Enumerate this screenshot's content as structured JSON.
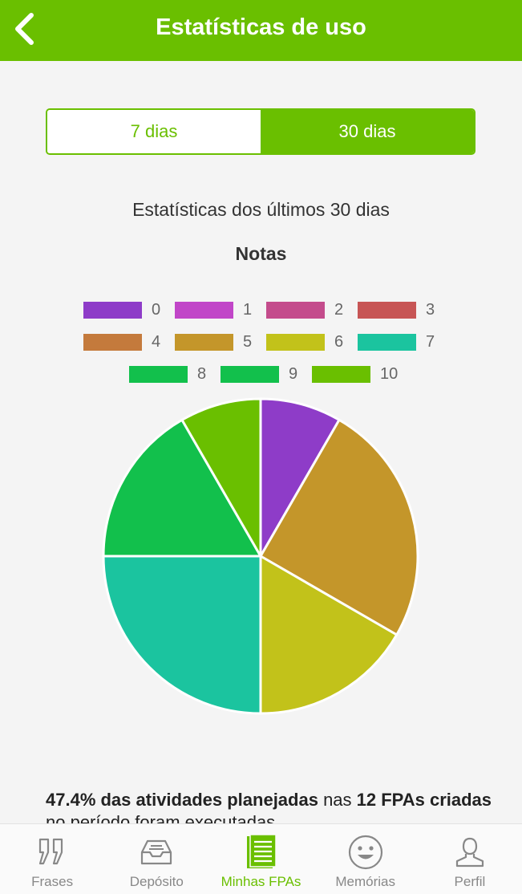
{
  "header": {
    "title": "Estatísticas de uso"
  },
  "segment": {
    "option_7": "7 dias",
    "option_30": "30 dias",
    "selected": "30 dias"
  },
  "subtitle": "Estatísticas dos últimos 30 dias",
  "chart_data": {
    "type": "pie",
    "title": "Notas",
    "legend": [
      {
        "label": "0",
        "color": "#8e3cc8"
      },
      {
        "label": "1",
        "color": "#c146c8"
      },
      {
        "label": "2",
        "color": "#c44c8c"
      },
      {
        "label": "3",
        "color": "#c75555"
      },
      {
        "label": "4",
        "color": "#c47a3c"
      },
      {
        "label": "5",
        "color": "#c4962a"
      },
      {
        "label": "6",
        "color": "#c2c21a"
      },
      {
        "label": "7",
        "color": "#1bc49f"
      },
      {
        "label": "8",
        "color": "#12c04c"
      },
      {
        "label": "9",
        "color": "#12c04c"
      },
      {
        "label": "10",
        "color": "#6abf00"
      }
    ],
    "slices": [
      {
        "label": "0",
        "value": 1,
        "color": "#8e3cc8"
      },
      {
        "label": "5",
        "value": 3,
        "color": "#c4962a"
      },
      {
        "label": "6",
        "value": 2,
        "color": "#c2c21a"
      },
      {
        "label": "7",
        "value": 3,
        "color": "#1bc49f"
      },
      {
        "label": "8",
        "value": 2,
        "color": "#12c04c"
      },
      {
        "label": "10",
        "value": 1,
        "color": "#6abf00"
      }
    ]
  },
  "summary": {
    "percent": "47.4% das atividades planejadas",
    "middle": " nas ",
    "count": "12 FPAs criadas",
    "end": " no período foram executadas"
  },
  "nav": {
    "items": [
      {
        "label": "Frases",
        "icon": "quote-icon"
      },
      {
        "label": "Depósito",
        "icon": "inbox-tray-icon"
      },
      {
        "label": "Minhas FPAs",
        "icon": "document-list-icon",
        "active": true
      },
      {
        "label": "Memórias",
        "icon": "smiley-icon"
      },
      {
        "label": "Perfil",
        "icon": "person-icon"
      }
    ]
  }
}
